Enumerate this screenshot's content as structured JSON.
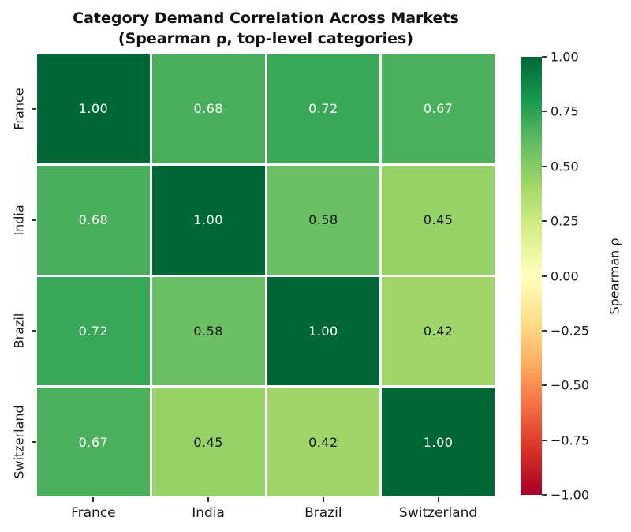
{
  "chart_data": {
    "type": "heatmap",
    "title": "Category Demand Correlation Across Markets",
    "subtitle": "(Spearman ρ, top-level categories)",
    "categories": [
      "France",
      "India",
      "Brazil",
      "Switzerland"
    ],
    "matrix": [
      [
        1.0,
        0.68,
        0.72,
        0.67
      ],
      [
        0.68,
        1.0,
        0.58,
        0.45
      ],
      [
        0.72,
        0.58,
        1.0,
        0.42
      ],
      [
        0.67,
        0.45,
        0.42,
        1.0
      ]
    ],
    "cell_label_decimals": 2,
    "vmin": -1,
    "vmax": 1,
    "colorbar": {
      "label": "Spearman ρ",
      "tick_labels": [
        "1.00",
        "0.75",
        "0.50",
        "0.25",
        "0.00",
        "−0.25",
        "−0.50",
        "−0.75",
        "−1.00"
      ]
    },
    "colormap_name": "RdYlGn",
    "colormap_stops": [
      "#a50026",
      "#d73027",
      "#f46d43",
      "#fdae61",
      "#fee08b",
      "#ffffbf",
      "#d9ef8b",
      "#a6d96a",
      "#66bd63",
      "#1a9850",
      "#006837"
    ],
    "annotation_text_light": "#ffffff",
    "annotation_text_dark": "#141414",
    "grid_line_color": "#ffffff",
    "tick_mark_color": "#333333",
    "legend_position": "right",
    "grid": "off"
  }
}
